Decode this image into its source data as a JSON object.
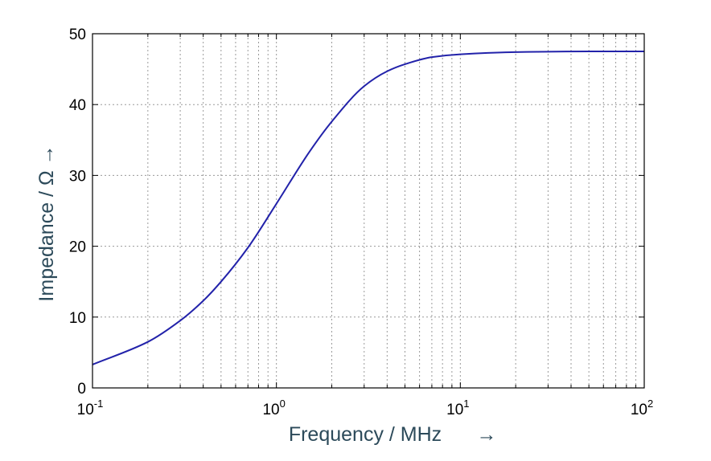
{
  "chart_data": {
    "type": "line",
    "xscale": "log",
    "xlim": [
      0.1,
      100
    ],
    "ylim": [
      0,
      50
    ],
    "grid": true,
    "xlabel": "Frequency / MHz",
    "xlabel_arrow": "→",
    "ylabel": "Impedance / Ω →",
    "x_ticks": [
      {
        "value": 0.1,
        "base": "10",
        "exp": "-1"
      },
      {
        "value": 1,
        "base": "10",
        "exp": "0"
      },
      {
        "value": 10,
        "base": "10",
        "exp": "1"
      },
      {
        "value": 100,
        "base": "10",
        "exp": "2"
      }
    ],
    "y_ticks": [
      0,
      10,
      20,
      30,
      40,
      50
    ],
    "line_color": "#2222aa",
    "series": [
      {
        "x": [
          0.1,
          0.2,
          0.3,
          0.4,
          0.5,
          0.7,
          1,
          1.5,
          2,
          3,
          4,
          5,
          7,
          10,
          20,
          50,
          100
        ],
        "y": [
          3.3,
          6.5,
          9.5,
          12.3,
          15,
          19.8,
          26,
          33.2,
          37.6,
          42.6,
          44.7,
          45.7,
          46.7,
          47.1,
          47.4,
          47.5,
          47.5
        ]
      }
    ]
  }
}
